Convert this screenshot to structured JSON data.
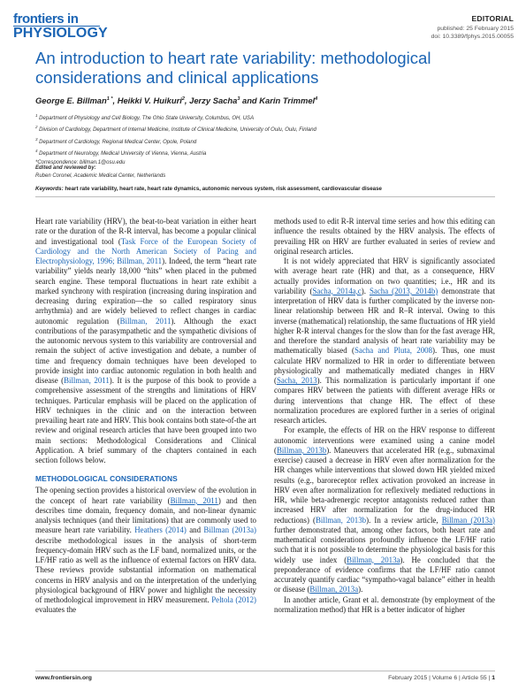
{
  "header": {
    "logo_line1": "frontiers in",
    "logo_line2": "PHYSIOLOGY",
    "article_type": "EDITORIAL",
    "published": "published: 25 February 2015",
    "doi": "doi: 10.3389/fphys.2015.00055"
  },
  "title": "An introduction to heart rate variability: methodological considerations and clinical applications",
  "authors": [
    {
      "name": "George E. Billman",
      "sup": "1",
      "star": "*",
      "sep": ", "
    },
    {
      "name": "Heikki V. Huikuri",
      "sup": "2",
      "star": "",
      "sep": ", "
    },
    {
      "name": "Jerzy Sacha",
      "sup": "3",
      "star": "",
      "sep": " and "
    },
    {
      "name": "Karin Trimmel",
      "sup": "4",
      "star": "",
      "sep": ""
    }
  ],
  "affiliations": [
    {
      "num": "1",
      "text": "Department of Physiology and Cell Biology, The Ohio State University, Columbus, OH, USA"
    },
    {
      "num": "2",
      "text": "Division of Cardiology, Department of Internal Medicine, Institute of Clinical Medicine, University of Oulu, Oulu, Finland"
    },
    {
      "num": "3",
      "text": "Department of Cardiology, Regional Medical Center, Opole, Poland"
    },
    {
      "num": "4",
      "text": "Department of Neurology, Medical University of Vienna, Vienna, Austria"
    }
  ],
  "correspondence": "*Correspondence: billman.1@osu.edu",
  "edited_by": {
    "heading": "Edited and reviewed by:",
    "value": "Ruben Coronel, Academic Medical Center, Netherlands"
  },
  "keywords": {
    "heading": "Keywords:",
    "value": "heart rate variability, heart rate, heart rate dynamics, autonomic nervous system, risk assessment, cardiovascular disease"
  },
  "body": {
    "left_p1": [
      {
        "t": "Heart rate variability (HRV), the beat-to-beat variation in either heart rate or the duration of the R-R interval, has become a popular clinical and investigational tool ("
      },
      {
        "t": "Task Force of the European Society of Cardiology and the North American Society of Pacing and Electrophysiology, 1996; Billman, 2011",
        "ref": true
      },
      {
        "t": "). Indeed, the term “heart rate variability” yields nearly 18,000 “hits” when placed in the pubmed search engine. These temporal fluctuations in heart rate exhibit a marked synchrony with respiration (increasing during inspiration and decreasing during expiration—the so called respiratory sinus arrhythmia) and are widely believed to reflect changes in cardiac autonomic regulation ("
      },
      {
        "t": "Billman, 2011",
        "ref": true
      },
      {
        "t": "). Although the exact contributions of the parasympathetic and the sympathetic divisions of the autonomic nervous system to this variability are controversial and remain the subject of active investigation and debate, a number of time and frequency domain techniques have been developed to provide insight into cardiac autonomic regulation in both health and disease ("
      },
      {
        "t": "Billman, 2011",
        "ref": true
      },
      {
        "t": "). It is the purpose of this book to provide a comprehensive assessment of the strengths and limitations of HRV techniques. Particular emphasis will be placed on the application of HRV techniques in the clinic and on the interaction between prevailing heart rate and HRV. This book contains both state-of-the art review and original research articles that have been grouped into two main sections: Methodological Considerations and Clinical Application. A brief summary of the chapters contained in each section follows below."
      }
    ],
    "section_heading": "METHODOLOGICAL CONSIDERATIONS",
    "left_p2": [
      {
        "t": "The opening section provides a historical overview of the evolution in the concept of heart rate variability ("
      },
      {
        "t": "Billman, 2011",
        "ref": true,
        "ul": true
      },
      {
        "t": ") and then describes time domain, frequency domain, and non-linear dynamic analysis techniques (and their limitations) that are commonly used to measure heart rate variability. "
      },
      {
        "t": "Heathers (2014)",
        "ref": true
      },
      {
        "t": " and "
      },
      {
        "t": "Billman (2013a)",
        "ref": true
      },
      {
        "t": " describe methodological issues in the analysis of short-term frequency-domain HRV such as the LF band, normalized units, or the LF/HF ratio as well as the influence of external factors on HRV data. These reviews provide substantial information on mathematical concerns in HRV analysis and on the interpretation of the underlying physiological background of HRV power and highlight the necessity of methodological improvement in HRV measurement. "
      },
      {
        "t": "Peltola (2012)",
        "ref": true
      },
      {
        "t": " evaluates the"
      }
    ],
    "right_p1": [
      {
        "t": "methods used to edit R-R interval time series and how this editing can influence the results obtained by the HRV analysis. The effects of prevailing HR on HRV are further evaluated in series of review and original research articles."
      }
    ],
    "right_p2": [
      {
        "t": "It is not widely appreciated that HRV is significantly associated with average heart rate (HR) and that, as a consequence, HRV actually provides information on two quantities; i.e., HR and its variability ("
      },
      {
        "t": "Sacha, 2014a,c",
        "ref": true,
        "ul": true
      },
      {
        "t": "). "
      },
      {
        "t": "Sacha (2013, 2014b)",
        "ref": true,
        "ul": true
      },
      {
        "t": " demonstrate that interpretation of HRV data is further complicated by the inverse non-linear relationship between HR and R–R interval. Owing to this inverse (mathematical) relationship, the same fluctuations of HR yield higher R-R interval changes for the slow than for the fast average HR, and therefore the standard analysis of heart rate variability may be mathematically biased ("
      },
      {
        "t": "Sacha and Pluta, 2008",
        "ref": true
      },
      {
        "t": "). Thus, one must calculate HRV normalized to HR in order to differentiate between physiologically and mathematically mediated changes in HRV ("
      },
      {
        "t": "Sacha, 2013",
        "ref": true,
        "ul": true
      },
      {
        "t": "). This normalization is particularly important if one compares HRV between the patients with different average HRs or during interventions that change HR. The effect of these normalization procedures are explored further in a series of original research articles."
      }
    ],
    "right_p3": [
      {
        "t": "For example, the effects of HR on the HRV response to different autonomic interventions were examined using a canine model ("
      },
      {
        "t": "Billman, 2013b",
        "ref": true,
        "ul": true
      },
      {
        "t": "). Maneuvers that accelerated HR (e.g., submaximal exercise) caused a decrease in HRV even after normalization for the HR changes while interventions that slowed down HR yielded mixed results (e.g., baroreceptor reflex activation provoked an increase in HRV even after normalization for reflexively mediated reductions in HR, while beta-adrenergic receptor antagonists reduced rather than increased HRV after normalization for the drug-induced HR reductions) ("
      },
      {
        "t": "Billman, 2013b",
        "ref": true
      },
      {
        "t": "). In a review article, "
      },
      {
        "t": "Billman (2013a)",
        "ref": true,
        "ul": true
      },
      {
        "t": " further demonstrated that, among other factors, both heart rate and mathematical considerations profoundly influence the LF/HF ratio such that it is not possible to determine the physiological basis for this widely use index ("
      },
      {
        "t": "Billman, 2013a",
        "ref": true,
        "ul": true
      },
      {
        "t": "). He concluded that the preponderance of evidence confirms that the LF/HF ratio cannot accurately quantify cardiac “sympatho-vagal balance” either in health or disease ("
      },
      {
        "t": "Billman, 2013a",
        "ref": true,
        "ul": true
      },
      {
        "t": ")."
      }
    ],
    "right_p4": [
      {
        "t": "In another article, Grant et al. demonstrate (by employment of the normalization method) that HR is a better indicator of higher"
      }
    ]
  },
  "footer": {
    "url": "www.frontiersin.org",
    "issue": "February 2015 | Volume 6 | Article 55 | ",
    "page": "1"
  }
}
